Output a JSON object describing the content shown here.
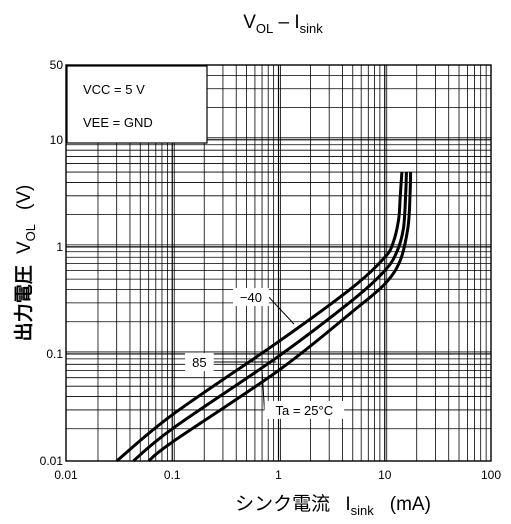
{
  "chart_data": {
    "type": "line",
    "title": "VOL – Isink",
    "title_main": "V",
    "title_sub1": "OL",
    "title_sep": " – I",
    "title_sub2": "sink",
    "xlabel_prefix": "シンク電流 ",
    "xlabel_main": "I",
    "xlabel_sub": "sink",
    "xlabel_unit": "(mA)",
    "ylabel_prefix": "出力電圧 ",
    "ylabel_main": "V",
    "ylabel_sub": "OL",
    "ylabel_unit": "(V)",
    "x_scale": "log",
    "y_scale": "log",
    "xlim": [
      0.01,
      100
    ],
    "ylim": [
      0.01,
      50
    ],
    "x_ticks": [
      {
        "value": 0.01,
        "label": "0.01"
      },
      {
        "value": 0.1,
        "label": "0.1"
      },
      {
        "value": 1,
        "label": "1"
      },
      {
        "value": 10,
        "label": "10"
      },
      {
        "value": 100,
        "label": "100"
      }
    ],
    "y_ticks": [
      {
        "value": 0.01,
        "label": "0.01"
      },
      {
        "value": 0.1,
        "label": "0.1"
      },
      {
        "value": 1,
        "label": "1"
      },
      {
        "value": 10,
        "label": "10"
      },
      {
        "value": 50,
        "label": "50"
      }
    ],
    "grid": true,
    "conditions": [
      "VCC = 5 V",
      "VEE = GND"
    ],
    "series": [
      {
        "name": "−40",
        "points": [
          [
            0.03,
            0.01
          ],
          [
            0.1,
            0.027
          ],
          [
            1,
            0.13
          ],
          [
            5,
            0.42
          ],
          [
            10,
            0.8
          ],
          [
            12,
            1.1
          ],
          [
            13.5,
            1.8
          ],
          [
            14,
            3
          ],
          [
            14.5,
            5
          ]
        ]
      },
      {
        "name": "Ta = 25°C",
        "points": [
          [
            0.043,
            0.01
          ],
          [
            0.1,
            0.02
          ],
          [
            1,
            0.095
          ],
          [
            5,
            0.32
          ],
          [
            10,
            0.6
          ],
          [
            13,
            0.9
          ],
          [
            15,
            1.5
          ],
          [
            15.7,
            3
          ],
          [
            16,
            5
          ]
        ]
      },
      {
        "name": "85",
        "points": [
          [
            0.06,
            0.01
          ],
          [
            0.1,
            0.015
          ],
          [
            1,
            0.07
          ],
          [
            5,
            0.25
          ],
          [
            10,
            0.45
          ],
          [
            14,
            0.75
          ],
          [
            16.5,
            1.5
          ],
          [
            17.3,
            3
          ],
          [
            17.5,
            5
          ]
        ]
      }
    ],
    "curve_labels": [
      {
        "text": "−40",
        "at": [
          0.55,
          0.34
        ],
        "target": [
          1.4,
          0.19
        ]
      },
      {
        "text": "85",
        "at": [
          0.18,
          0.084
        ],
        "target": [
          0.95,
          0.084
        ]
      },
      {
        "text": "Ta = 25°C",
        "at": [
          1.75,
          0.03
        ],
        "target": [
          0.7,
          0.07
        ]
      }
    ],
    "colors": {
      "line": "#000000",
      "grid": "#000000",
      "background": "#ffffff"
    }
  }
}
